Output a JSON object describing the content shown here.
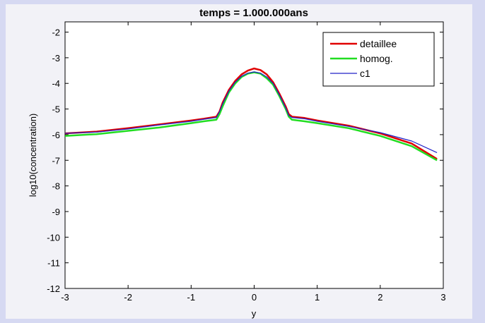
{
  "chart_data": {
    "type": "line",
    "title": "temps = 1.000.000ans",
    "xlabel": "y",
    "ylabel": "log10(concentration)",
    "xlim": [
      -3,
      3
    ],
    "ylim": [
      -12,
      -1.6
    ],
    "x_ticks": [
      -3,
      -2,
      -1,
      0,
      1,
      2,
      3
    ],
    "x_tick_labels": [
      "-3",
      "-2",
      "-1",
      "0",
      "1",
      "2",
      "3"
    ],
    "y_ticks": [
      -12,
      -11,
      -10,
      -9,
      -8,
      -7,
      -6,
      -5,
      -4,
      -3,
      -2
    ],
    "y_tick_labels": [
      "-12",
      "-11",
      "-10",
      "-9",
      "-8",
      "-7",
      "-6",
      "-5",
      "-4",
      "-3",
      "-2"
    ],
    "grid": false,
    "legend_position": "top-right",
    "series": [
      {
        "name": "detaillee",
        "color": "#e00000",
        "x": [
          -3,
          -2.5,
          -2,
          -1.5,
          -1,
          -0.8,
          -0.6,
          -0.55,
          -0.5,
          -0.4,
          -0.3,
          -0.2,
          -0.1,
          0,
          0.1,
          0.2,
          0.3,
          0.4,
          0.5,
          0.55,
          0.6,
          0.8,
          1,
          1.5,
          2,
          2.5,
          2.9
        ],
        "y": [
          -5.95,
          -5.88,
          -5.75,
          -5.6,
          -5.45,
          -5.38,
          -5.3,
          -5.1,
          -4.75,
          -4.25,
          -3.9,
          -3.65,
          -3.5,
          -3.42,
          -3.48,
          -3.65,
          -3.95,
          -4.4,
          -4.9,
          -5.2,
          -5.3,
          -5.35,
          -5.45,
          -5.65,
          -5.95,
          -6.35,
          -6.95
        ]
      },
      {
        "name": "homog.",
        "color": "#22dd22",
        "x": [
          -3,
          -2.5,
          -2,
          -1.5,
          -1,
          -0.8,
          -0.6,
          -0.55,
          -0.5,
          -0.4,
          -0.3,
          -0.2,
          -0.1,
          0,
          0.1,
          0.2,
          0.3,
          0.4,
          0.5,
          0.55,
          0.6,
          0.8,
          1,
          1.5,
          2,
          2.5,
          2.9
        ],
        "y": [
          -6.05,
          -5.98,
          -5.85,
          -5.72,
          -5.55,
          -5.48,
          -5.42,
          -5.2,
          -4.9,
          -4.35,
          -4.0,
          -3.75,
          -3.62,
          -3.57,
          -3.62,
          -3.8,
          -4.05,
          -4.5,
          -5.0,
          -5.3,
          -5.42,
          -5.48,
          -5.55,
          -5.75,
          -6.05,
          -6.45,
          -7.0
        ]
      },
      {
        "name": "c1",
        "color": "#2020c8",
        "x": [
          -3,
          -2.5,
          -2,
          -1.5,
          -1,
          -0.8,
          -0.6,
          -0.55,
          -0.5,
          -0.4,
          -0.3,
          -0.2,
          -0.1,
          0,
          0.1,
          0.2,
          0.3,
          0.4,
          0.5,
          0.55,
          0.6,
          0.8,
          1,
          1.5,
          2,
          2.5,
          2.9
        ],
        "y": [
          -5.95,
          -5.9,
          -5.78,
          -5.62,
          -5.48,
          -5.4,
          -5.33,
          -5.1,
          -4.8,
          -4.3,
          -3.95,
          -3.72,
          -3.6,
          -3.55,
          -3.6,
          -3.75,
          -4.0,
          -4.45,
          -4.95,
          -5.25,
          -5.33,
          -5.38,
          -5.48,
          -5.68,
          -5.92,
          -6.25,
          -6.7
        ]
      }
    ]
  }
}
